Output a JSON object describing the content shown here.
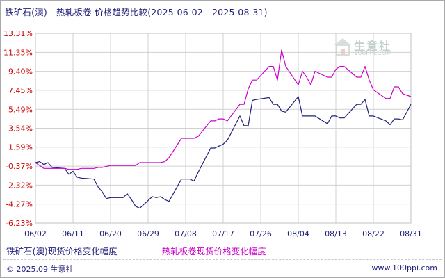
{
  "title": {
    "commodities": "铁矿石(澳) - 热轧板卷",
    "metric": "价格趋势比较",
    "range": "(2025-06-02 - 2025-08-31)"
  },
  "watermark": {
    "brand": "生意社",
    "url": "100PPI.COM"
  },
  "footer": {
    "copyright": "© 2025.09 生意社",
    "url": "www.100ppi.com"
  },
  "colors": {
    "series1": "#1f1f7a",
    "series2": "#cc00cc",
    "ytick": "#cc0000",
    "grid": "#d0d0d0"
  },
  "chart_data": {
    "type": "line",
    "ylim": [
      -6.23,
      13.31
    ],
    "yticks": [
      "13.31%",
      "11.35%",
      "9.40%",
      "7.45%",
      "5.49%",
      "3.54%",
      "1.59%",
      "-0.37%",
      "-2.32%",
      "-4.27%",
      "-6.23%"
    ],
    "yticks_values": [
      13.31,
      11.35,
      9.4,
      7.45,
      5.49,
      3.54,
      1.59,
      -0.37,
      -2.32,
      -4.27,
      -6.23
    ],
    "xticks": [
      "06/02",
      "06/11",
      "06/20",
      "06/29",
      "07/08",
      "07/17",
      "07/26",
      "08/04",
      "08/13",
      "08/22",
      "08/31"
    ],
    "grid": true,
    "series": [
      {
        "name": "铁矿石(澳)现货价格变化幅度",
        "color": "#1f1f7a",
        "points": [
          [
            "06/02",
            0.0
          ],
          [
            "06/03",
            0.1
          ],
          [
            "06/04",
            -0.2
          ],
          [
            "06/05",
            0.0
          ],
          [
            "06/06",
            -0.5
          ],
          [
            "06/09",
            -0.6
          ],
          [
            "06/10",
            -1.2
          ],
          [
            "06/11",
            -0.9
          ],
          [
            "06/12",
            -1.5
          ],
          [
            "06/13",
            -1.6
          ],
          [
            "06/16",
            -1.7
          ],
          [
            "06/17",
            -2.5
          ],
          [
            "06/18",
            -3.0
          ],
          [
            "06/19",
            -3.7
          ],
          [
            "06/20",
            -3.6
          ],
          [
            "06/23",
            -3.6
          ],
          [
            "06/24",
            -3.2
          ],
          [
            "06/25",
            -3.8
          ],
          [
            "06/26",
            -4.5
          ],
          [
            "06/27",
            -4.7
          ],
          [
            "06/30",
            -3.5
          ],
          [
            "07/01",
            -3.6
          ],
          [
            "07/02",
            -3.5
          ],
          [
            "07/03",
            -3.8
          ],
          [
            "07/04",
            -4.0
          ],
          [
            "07/07",
            -1.7
          ],
          [
            "07/08",
            -1.7
          ],
          [
            "07/09",
            -1.7
          ],
          [
            "07/10",
            -1.9
          ],
          [
            "07/11",
            -1.0
          ],
          [
            "07/14",
            1.5
          ],
          [
            "07/15",
            1.5
          ],
          [
            "07/16",
            1.7
          ],
          [
            "07/17",
            1.9
          ],
          [
            "07/18",
            2.3
          ],
          [
            "07/21",
            4.8
          ],
          [
            "07/22",
            3.8
          ],
          [
            "07/23",
            3.8
          ],
          [
            "07/24",
            6.4
          ],
          [
            "07/25",
            6.5
          ],
          [
            "07/28",
            6.7
          ],
          [
            "07/29",
            6.0
          ],
          [
            "07/30",
            6.0
          ],
          [
            "07/31",
            5.3
          ],
          [
            "08/01",
            5.2
          ],
          [
            "08/04",
            6.8
          ],
          [
            "08/05",
            4.8
          ],
          [
            "08/06",
            4.8
          ],
          [
            "08/07",
            4.8
          ],
          [
            "08/08",
            4.8
          ],
          [
            "08/11",
            4.0
          ],
          [
            "08/12",
            4.8
          ],
          [
            "08/13",
            4.8
          ],
          [
            "08/14",
            4.6
          ],
          [
            "08/15",
            4.6
          ],
          [
            "08/18",
            6.0
          ],
          [
            "08/19",
            6.0
          ],
          [
            "08/20",
            6.5
          ],
          [
            "08/21",
            4.8
          ],
          [
            "08/22",
            4.8
          ],
          [
            "08/25",
            4.3
          ],
          [
            "08/26",
            3.9
          ],
          [
            "08/27",
            4.5
          ],
          [
            "08/28",
            4.5
          ],
          [
            "08/29",
            4.4
          ],
          [
            "08/31",
            6.0
          ]
        ]
      },
      {
        "name": "热轧板卷现货价格变化幅度",
        "color": "#cc00cc",
        "points": [
          [
            "06/02",
            0.0
          ],
          [
            "06/03",
            -0.3
          ],
          [
            "06/04",
            -0.6
          ],
          [
            "06/05",
            -0.6
          ],
          [
            "06/06",
            -0.6
          ],
          [
            "06/09",
            -0.6
          ],
          [
            "06/10",
            -0.7
          ],
          [
            "06/11",
            -0.7
          ],
          [
            "06/12",
            -0.7
          ],
          [
            "06/13",
            -0.6
          ],
          [
            "06/16",
            -0.6
          ],
          [
            "06/17",
            -0.5
          ],
          [
            "06/18",
            -0.5
          ],
          [
            "06/19",
            -0.4
          ],
          [
            "06/20",
            -0.3
          ],
          [
            "06/23",
            -0.3
          ],
          [
            "06/24",
            -0.3
          ],
          [
            "06/25",
            -0.3
          ],
          [
            "06/26",
            -0.3
          ],
          [
            "06/27",
            0.0
          ],
          [
            "06/30",
            0.0
          ],
          [
            "07/01",
            0.0
          ],
          [
            "07/02",
            0.0
          ],
          [
            "07/03",
            0.1
          ],
          [
            "07/04",
            0.5
          ],
          [
            "07/07",
            2.5
          ],
          [
            "07/08",
            2.5
          ],
          [
            "07/09",
            2.5
          ],
          [
            "07/10",
            2.5
          ],
          [
            "07/11",
            2.7
          ],
          [
            "07/14",
            4.3
          ],
          [
            "07/15",
            4.3
          ],
          [
            "07/16",
            4.5
          ],
          [
            "07/17",
            4.5
          ],
          [
            "07/18",
            4.3
          ],
          [
            "07/21",
            6.0
          ],
          [
            "07/22",
            6.0
          ],
          [
            "07/23",
            7.6
          ],
          [
            "07/24",
            8.5
          ],
          [
            "07/25",
            8.5
          ],
          [
            "07/28",
            9.9
          ],
          [
            "07/29",
            9.9
          ],
          [
            "07/30",
            8.5
          ],
          [
            "07/31",
            11.6
          ],
          [
            "08/01",
            9.9
          ],
          [
            "08/04",
            8.0
          ],
          [
            "08/05",
            9.4
          ],
          [
            "08/06",
            8.8
          ],
          [
            "08/07",
            8.0
          ],
          [
            "08/08",
            9.4
          ],
          [
            "08/11",
            8.8
          ],
          [
            "08/12",
            8.8
          ],
          [
            "08/13",
            9.6
          ],
          [
            "08/14",
            9.9
          ],
          [
            "08/15",
            9.9
          ],
          [
            "08/18",
            8.8
          ],
          [
            "08/19",
            8.8
          ],
          [
            "08/20",
            9.9
          ],
          [
            "08/21",
            8.5
          ],
          [
            "08/22",
            7.5
          ],
          [
            "08/25",
            6.6
          ],
          [
            "08/26",
            6.6
          ],
          [
            "08/27",
            7.8
          ],
          [
            "08/28",
            7.8
          ],
          [
            "08/29",
            7.1
          ],
          [
            "08/31",
            6.8
          ]
        ]
      }
    ]
  }
}
